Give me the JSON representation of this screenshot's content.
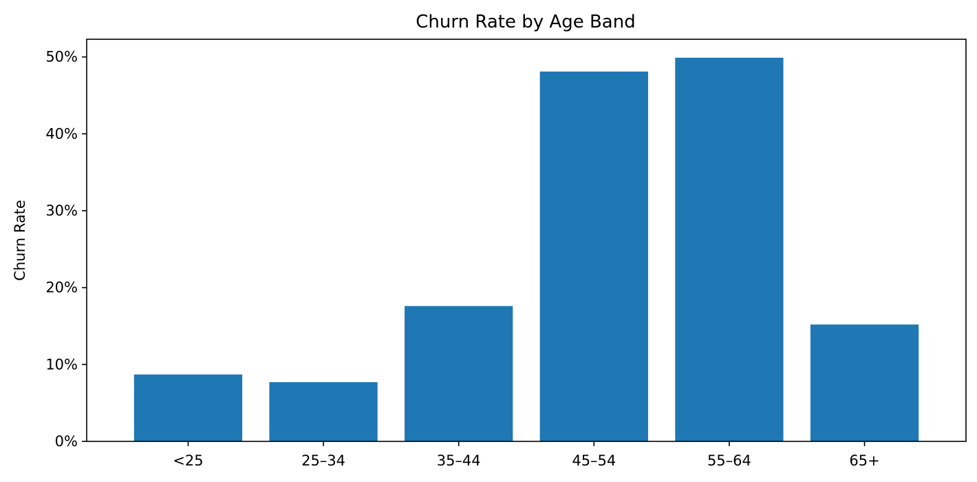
{
  "chart_data": {
    "type": "bar",
    "title": "Churn Rate by Age Band",
    "xlabel": "",
    "ylabel": "Churn Rate",
    "categories": [
      "<25",
      "25–34",
      "35–44",
      "45–54",
      "55–64",
      "65+"
    ],
    "values": [
      0.087,
      0.077,
      0.176,
      0.481,
      0.499,
      0.152
    ],
    "ylim": [
      0,
      0.523
    ],
    "yticks": [
      0,
      0.1,
      0.2,
      0.3,
      0.4,
      0.5
    ],
    "ytick_labels": [
      "0%",
      "10%",
      "20%",
      "30%",
      "40%",
      "50%"
    ],
    "grid": false,
    "legend": "none",
    "bar_color": "#1f77b4"
  }
}
